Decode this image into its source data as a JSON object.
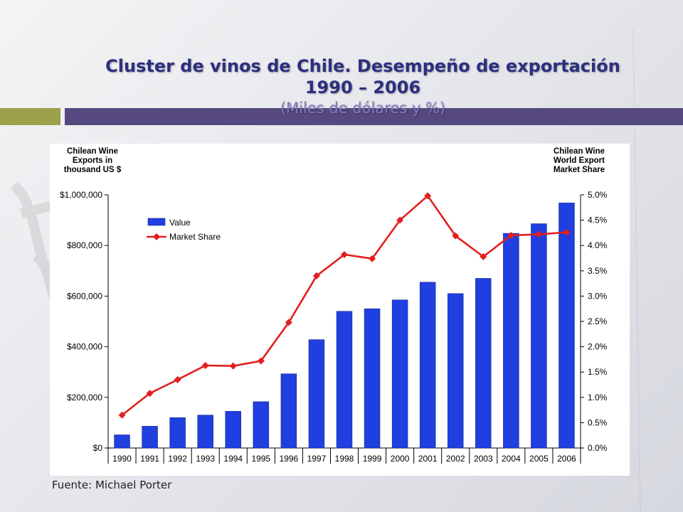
{
  "slide": {
    "title_line1": "Cluster de vinos de Chile. Desempeño de exportación",
    "title_line2": "1990 – 2006",
    "title_line3": "(Miles de dólares y %)",
    "source": "Fuente: Michael Porter"
  },
  "colors": {
    "title": "#2c2f7f",
    "accent_olive": "#9aa14a",
    "accent_purple": "#56497f",
    "bar": "#1f3fe0",
    "line": "#e21f1f"
  },
  "chart_data": {
    "type": "bar+line",
    "categories": [
      "1990",
      "1991",
      "1992",
      "1993",
      "1994",
      "1995",
      "1996",
      "1997",
      "1998",
      "1999",
      "2000",
      "2001",
      "2002",
      "2003",
      "2004",
      "2005",
      "2006"
    ],
    "series": [
      {
        "name": "Value",
        "type": "bar",
        "axis": "left",
        "values": [
          52000,
          86000,
          120000,
          130000,
          145000,
          183000,
          293000,
          428000,
          540000,
          550000,
          585000,
          655000,
          610000,
          670000,
          848000,
          886000,
          968000
        ]
      },
      {
        "name": "Market Share",
        "type": "line",
        "axis": "right",
        "values": [
          0.65,
          1.08,
          1.35,
          1.63,
          1.62,
          1.72,
          2.48,
          3.4,
          3.82,
          3.74,
          4.5,
          4.98,
          4.19,
          3.78,
          4.2,
          4.22,
          4.26
        ]
      }
    ],
    "ylabel_left": [
      "Chilean Wine",
      "Exports in",
      "thousand US $"
    ],
    "ylabel_right": [
      "Chilean Wine",
      "World Export",
      "Market Share"
    ],
    "ylim_left": [
      0,
      1000000
    ],
    "ylim_right": [
      0,
      5.0
    ],
    "yticks_left": [
      "$0",
      "$200,000",
      "$400,000",
      "$600,000",
      "$800,000",
      "$1,000,000"
    ],
    "yticks_right": [
      "0.0%",
      "0.5%",
      "1.0%",
      "1.5%",
      "2.0%",
      "2.5%",
      "3.0%",
      "3.5%",
      "4.0%",
      "4.5%",
      "5.0%"
    ],
    "legend": [
      "Value",
      "Market Share"
    ],
    "legend_position": "top-left",
    "grid": false
  }
}
